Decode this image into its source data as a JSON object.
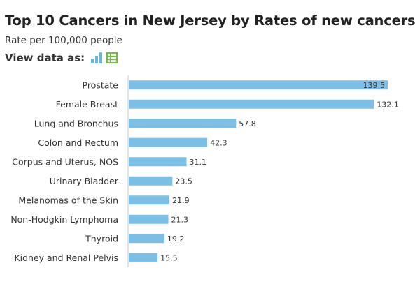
{
  "title": "Top 10 Cancers in New Jersey by Rates of new cancers",
  "subtitle": "Rate per 100,000 people",
  "view_toggle": {
    "label": "View data as:",
    "options": [
      "bar-chart-icon",
      "table-icon"
    ]
  },
  "colors": {
    "bar": "#7cbfe6",
    "axis": "#c8c8c8",
    "bar_chart_icon": "#6ab8d8",
    "table_icon": "#7bb84a"
  },
  "chart_data": {
    "type": "bar",
    "orientation": "horizontal",
    "title": "Top 10 Cancers in New Jersey by Rates of new cancers",
    "subtitle": "Rate per 100,000 people",
    "categories": [
      "Prostate",
      "Female Breast",
      "Lung and Bronchus",
      "Colon and Rectum",
      "Corpus and Uterus, NOS",
      "Urinary Bladder",
      "Melanomas of the Skin",
      "Non-Hodgkin Lymphoma",
      "Thyroid",
      "Kidney and Renal Pelvis"
    ],
    "values": [
      139.5,
      132.1,
      57.8,
      42.3,
      31.1,
      23.5,
      21.9,
      21.3,
      19.2,
      15.5
    ],
    "data_labels": [
      "139.5",
      "132.1",
      "57.8",
      "42.3",
      "31.1",
      "23.5",
      "21.9",
      "21.3",
      "19.2",
      "15.5"
    ],
    "xlim": [
      0,
      139.5
    ],
    "grid": false,
    "legend": "none"
  }
}
